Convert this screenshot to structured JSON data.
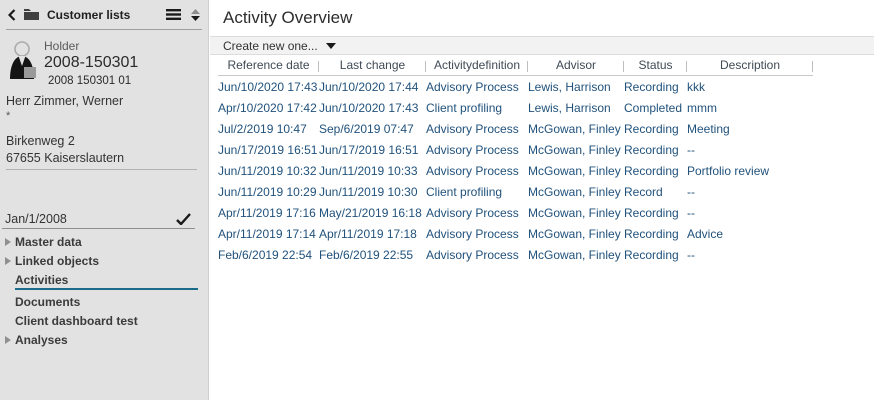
{
  "sidebar": {
    "header": {
      "title": "Customer lists"
    },
    "customer": {
      "holder_label": "Holder",
      "number": "2008-150301",
      "sub_number": "2008 150301 01",
      "name": "Herr Zimmer, Werner",
      "asterisk": "*",
      "address_line1": "Birkenweg 2",
      "address_line2": "67655 Kaiserslautern"
    },
    "date_field": {
      "value": "Jan/1/2008"
    },
    "nav": {
      "items": [
        {
          "label": "Master data",
          "expandable": true,
          "active": false
        },
        {
          "label": "Linked objects",
          "expandable": true,
          "active": false
        },
        {
          "label": "Activities",
          "expandable": false,
          "active": true
        },
        {
          "label": "Documents",
          "expandable": false,
          "active": false
        },
        {
          "label": "Client dashboard test",
          "expandable": false,
          "active": false
        },
        {
          "label": "Analyses",
          "expandable": true,
          "active": false
        }
      ]
    }
  },
  "main": {
    "title": "Activity Overview",
    "toolbar": {
      "create_button_label": "Create new one..."
    },
    "table": {
      "columns": [
        "Reference date",
        "Last change",
        "Activitydefinition",
        "Advisor",
        "Status",
        "Description"
      ],
      "rows": [
        [
          "Jun/10/2020 17:43",
          "Jun/10/2020 17:44",
          "Advisory Process",
          "Lewis, Harrison",
          "Recording",
          "kkk"
        ],
        [
          "Apr/10/2020 17:42",
          "Jun/10/2020 17:43",
          "Client profiling",
          "Lewis, Harrison",
          "Completed",
          "mmm"
        ],
        [
          "Jul/2/2019 10:47",
          "Sep/6/2019 07:47",
          "Advisory Process",
          "McGowan, Finley",
          "Recording",
          "Meeting"
        ],
        [
          "Jun/17/2019 16:51",
          "Jun/17/2019 16:51",
          "Advisory Process",
          "McGowan, Finley",
          "Recording",
          "--"
        ],
        [
          "Jun/11/2019 10:32",
          "Jun/11/2019 10:33",
          "Advisory Process",
          "McGowan, Finley",
          "Recording",
          "Portfolio review"
        ],
        [
          "Jun/11/2019 10:29",
          "Jun/11/2019 10:30",
          "Client profiling",
          "McGowan, Finley",
          "Record",
          "--"
        ],
        [
          "Apr/11/2019 17:16",
          "May/21/2019 16:18",
          "Advisory Process",
          "McGowan, Finley",
          "Recording",
          "--"
        ],
        [
          "Apr/11/2019 17:14",
          "Apr/11/2019 17:18",
          "Advisory Process",
          "McGowan, Finley",
          "Recording",
          "Advice"
        ],
        [
          "Feb/6/2019 22:54",
          "Feb/6/2019 22:55",
          "Advisory Process",
          "McGowan, Finley",
          "Recording",
          "--"
        ]
      ]
    }
  },
  "icons": [
    "back-icon",
    "folder-icon",
    "menu-icon",
    "sort-icon",
    "avatar",
    "check-icon",
    "nav-expand-caret-icon",
    "caret-down-icon"
  ],
  "colors": {
    "accent_teal": "#1a6c8a",
    "table_text_blue": "#21527c",
    "sidebar_bg": "#e2e2e2",
    "toolbar_bg": "#f2f2f2"
  }
}
